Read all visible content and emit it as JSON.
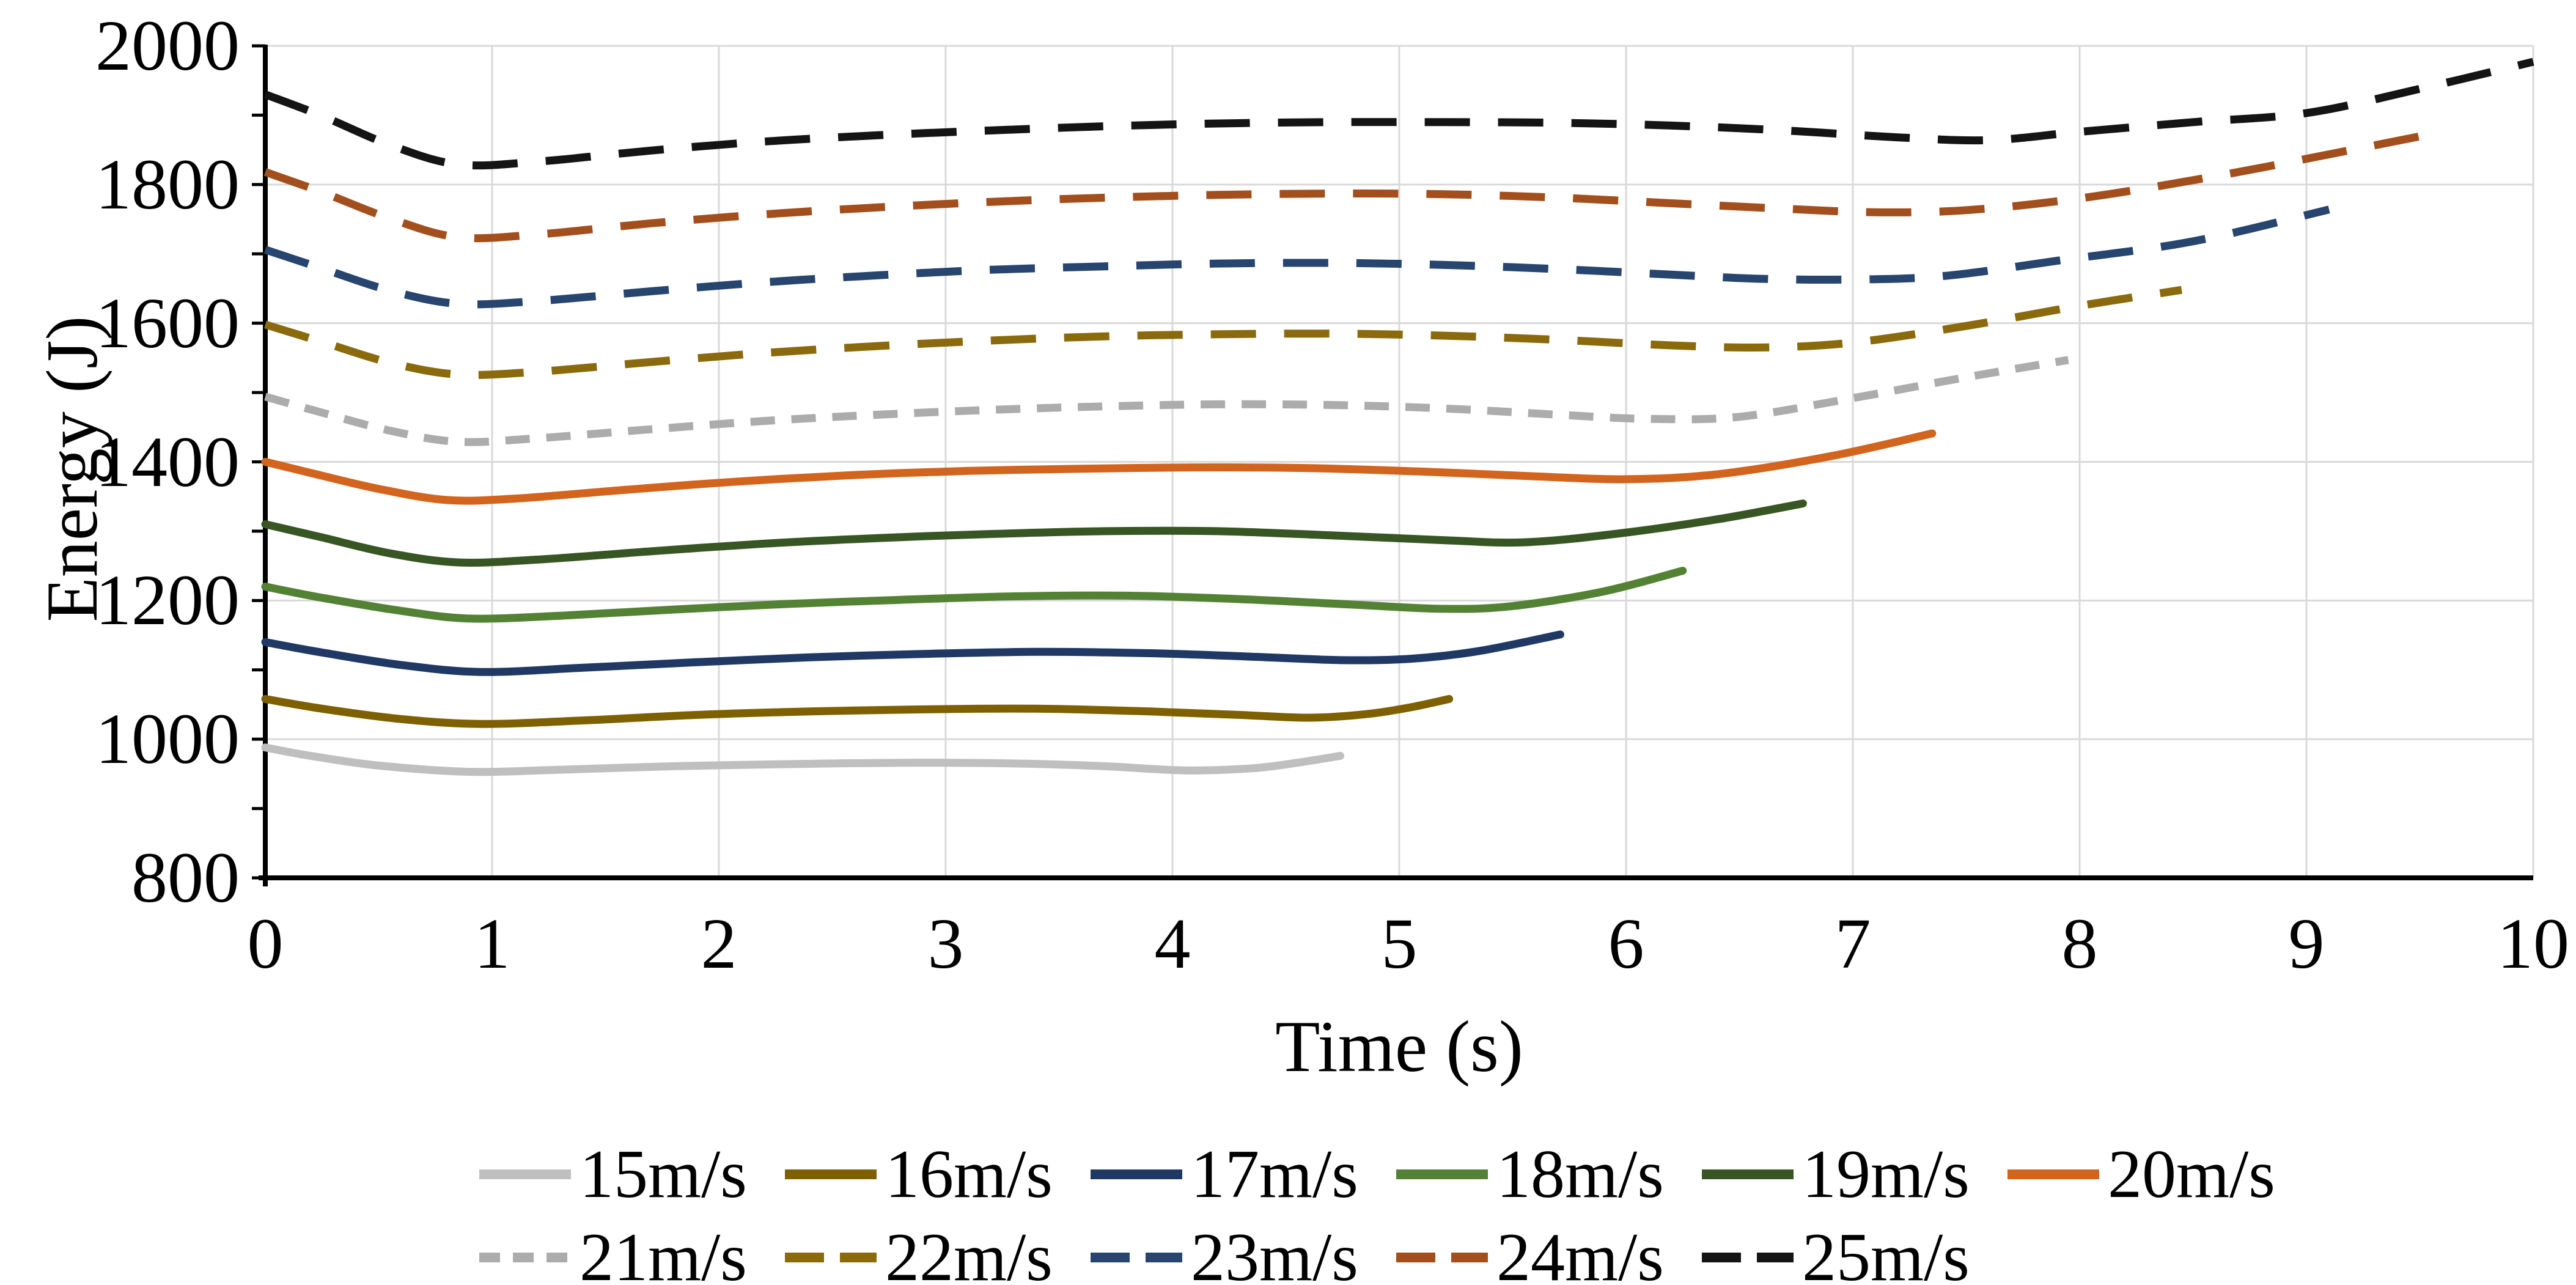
{
  "chart_data": {
    "type": "line",
    "title": "",
    "xlabel": "Time (s)",
    "ylabel": "Energy (J)",
    "xlim": [
      0,
      10
    ],
    "ylim": [
      800,
      2000
    ],
    "x_ticks": [
      0,
      1,
      2,
      3,
      4,
      5,
      6,
      7,
      8,
      9,
      10
    ],
    "y_ticks": [
      800,
      1000,
      1200,
      1400,
      1600,
      1800,
      2000
    ],
    "y_minor_tick_step": 100,
    "grid": true,
    "legend_position": "bottom",
    "background_color": "#ffffff",
    "gridline_color": "#d9d9d9",
    "axis_color": "#000000",
    "series": [
      {
        "name": "15m/s",
        "color": "#bfbfbf",
        "style": "solid",
        "points": [
          [
            0,
            988
          ],
          [
            0.2,
            976
          ],
          [
            0.5,
            962
          ],
          [
            0.9,
            953
          ],
          [
            1.3,
            956
          ],
          [
            1.8,
            961
          ],
          [
            2.3,
            964
          ],
          [
            2.8,
            966
          ],
          [
            3.3,
            965
          ],
          [
            3.7,
            961
          ],
          [
            4.05,
            955
          ],
          [
            4.35,
            958
          ],
          [
            4.55,
            966
          ],
          [
            4.74,
            976
          ]
        ]
      },
      {
        "name": "16m/s",
        "color": "#7f6000",
        "style": "solid",
        "points": [
          [
            0,
            1058
          ],
          [
            0.25,
            1044
          ],
          [
            0.6,
            1029
          ],
          [
            0.95,
            1022
          ],
          [
            1.4,
            1027
          ],
          [
            1.9,
            1035
          ],
          [
            2.4,
            1040
          ],
          [
            2.9,
            1043
          ],
          [
            3.4,
            1044
          ],
          [
            3.9,
            1040
          ],
          [
            4.3,
            1035
          ],
          [
            4.6,
            1031
          ],
          [
            4.85,
            1036
          ],
          [
            5.05,
            1046
          ],
          [
            5.22,
            1058
          ]
        ]
      },
      {
        "name": "17m/s",
        "color": "#1f3864",
        "style": "solid",
        "points": [
          [
            0,
            1140
          ],
          [
            0.25,
            1125
          ],
          [
            0.6,
            1107
          ],
          [
            0.95,
            1097
          ],
          [
            1.4,
            1103
          ],
          [
            1.9,
            1111
          ],
          [
            2.4,
            1118
          ],
          [
            2.9,
            1123
          ],
          [
            3.4,
            1126
          ],
          [
            3.9,
            1124
          ],
          [
            4.35,
            1119
          ],
          [
            4.75,
            1114
          ],
          [
            5.05,
            1116
          ],
          [
            5.35,
            1127
          ],
          [
            5.71,
            1151
          ]
        ]
      },
      {
        "name": "18m/s",
        "color": "#548235",
        "style": "solid",
        "points": [
          [
            0,
            1220
          ],
          [
            0.25,
            1204
          ],
          [
            0.6,
            1185
          ],
          [
            0.9,
            1174
          ],
          [
            1.3,
            1178
          ],
          [
            1.8,
            1187
          ],
          [
            2.3,
            1195
          ],
          [
            2.8,
            1201
          ],
          [
            3.3,
            1206
          ],
          [
            3.8,
            1207
          ],
          [
            4.3,
            1202
          ],
          [
            4.8,
            1194
          ],
          [
            5.2,
            1188
          ],
          [
            5.5,
            1192
          ],
          [
            5.9,
            1213
          ],
          [
            6.25,
            1243
          ]
        ]
      },
      {
        "name": "19m/s",
        "color": "#375623",
        "style": "solid",
        "points": [
          [
            0,
            1310
          ],
          [
            0.25,
            1291
          ],
          [
            0.55,
            1268
          ],
          [
            0.85,
            1255
          ],
          [
            1.2,
            1259
          ],
          [
            1.7,
            1271
          ],
          [
            2.2,
            1282
          ],
          [
            2.7,
            1290
          ],
          [
            3.2,
            1296
          ],
          [
            3.7,
            1300
          ],
          [
            4.2,
            1300
          ],
          [
            4.7,
            1294
          ],
          [
            5.2,
            1287
          ],
          [
            5.55,
            1284
          ],
          [
            5.95,
            1296
          ],
          [
            6.4,
            1317
          ],
          [
            6.78,
            1340
          ]
        ]
      },
      {
        "name": "20m/s",
        "color": "#d2641e",
        "style": "solid",
        "points": [
          [
            0,
            1400
          ],
          [
            0.2,
            1384
          ],
          [
            0.5,
            1361
          ],
          [
            0.8,
            1345
          ],
          [
            1.1,
            1347
          ],
          [
            1.6,
            1360
          ],
          [
            2.1,
            1372
          ],
          [
            2.6,
            1381
          ],
          [
            3.1,
            1387
          ],
          [
            3.6,
            1390
          ],
          [
            4.1,
            1392
          ],
          [
            4.6,
            1391
          ],
          [
            5.1,
            1386
          ],
          [
            5.6,
            1379
          ],
          [
            6.0,
            1375
          ],
          [
            6.4,
            1382
          ],
          [
            6.9,
            1408
          ],
          [
            7.35,
            1441
          ]
        ]
      },
      {
        "name": "21m/s",
        "color": "#acacac",
        "style": "short-dash",
        "points": [
          [
            0,
            1494
          ],
          [
            0.25,
            1471
          ],
          [
            0.55,
            1445
          ],
          [
            0.85,
            1429
          ],
          [
            1.2,
            1434
          ],
          [
            1.7,
            1447
          ],
          [
            2.2,
            1459
          ],
          [
            2.7,
            1468
          ],
          [
            3.2,
            1475
          ],
          [
            3.7,
            1480
          ],
          [
            4.2,
            1483
          ],
          [
            4.7,
            1482
          ],
          [
            5.2,
            1477
          ],
          [
            5.7,
            1468
          ],
          [
            6.1,
            1462
          ],
          [
            6.5,
            1465
          ],
          [
            7.0,
            1492
          ],
          [
            7.5,
            1522
          ],
          [
            7.95,
            1547
          ]
        ]
      },
      {
        "name": "22m/s",
        "color": "#8a6a0d",
        "style": "dash",
        "points": [
          [
            0,
            1598
          ],
          [
            0.25,
            1573
          ],
          [
            0.55,
            1543
          ],
          [
            0.85,
            1526
          ],
          [
            1.2,
            1530
          ],
          [
            1.7,
            1544
          ],
          [
            2.2,
            1557
          ],
          [
            2.7,
            1567
          ],
          [
            3.2,
            1575
          ],
          [
            3.7,
            1581
          ],
          [
            4.2,
            1584
          ],
          [
            4.7,
            1585
          ],
          [
            5.2,
            1582
          ],
          [
            5.7,
            1576
          ],
          [
            6.2,
            1568
          ],
          [
            6.6,
            1565
          ],
          [
            7.0,
            1572
          ],
          [
            7.5,
            1596
          ],
          [
            8.0,
            1625
          ],
          [
            8.45,
            1648
          ]
        ]
      },
      {
        "name": "23m/s",
        "color": "#27456e",
        "style": "dash",
        "points": [
          [
            0,
            1706
          ],
          [
            0.25,
            1679
          ],
          [
            0.55,
            1647
          ],
          [
            0.85,
            1628
          ],
          [
            1.2,
            1632
          ],
          [
            1.7,
            1646
          ],
          [
            2.2,
            1659
          ],
          [
            2.7,
            1669
          ],
          [
            3.2,
            1677
          ],
          [
            3.7,
            1682
          ],
          [
            4.2,
            1686
          ],
          [
            4.7,
            1687
          ],
          [
            5.2,
            1684
          ],
          [
            5.7,
            1678
          ],
          [
            6.2,
            1670
          ],
          [
            6.6,
            1664
          ],
          [
            7.0,
            1663
          ],
          [
            7.4,
            1668
          ],
          [
            7.9,
            1690
          ],
          [
            8.5,
            1718
          ],
          [
            9.1,
            1764
          ]
        ]
      },
      {
        "name": "24m/s",
        "color": "#a34f1d",
        "style": "dash",
        "points": [
          [
            0,
            1818
          ],
          [
            0.25,
            1789
          ],
          [
            0.55,
            1751
          ],
          [
            0.85,
            1724
          ],
          [
            1.2,
            1728
          ],
          [
            1.7,
            1744
          ],
          [
            2.2,
            1757
          ],
          [
            2.7,
            1767
          ],
          [
            3.2,
            1775
          ],
          [
            3.7,
            1781
          ],
          [
            4.2,
            1785
          ],
          [
            4.7,
            1787
          ],
          [
            5.2,
            1786
          ],
          [
            5.7,
            1781
          ],
          [
            6.2,
            1773
          ],
          [
            6.7,
            1765
          ],
          [
            7.1,
            1760
          ],
          [
            7.5,
            1763
          ],
          [
            8.0,
            1780
          ],
          [
            8.6,
            1812
          ],
          [
            9.2,
            1850
          ],
          [
            9.6,
            1876
          ]
        ]
      },
      {
        "name": "25m/s",
        "color": "#141414",
        "style": "dash",
        "points": [
          [
            0,
            1930
          ],
          [
            0.25,
            1899
          ],
          [
            0.55,
            1857
          ],
          [
            0.85,
            1829
          ],
          [
            1.2,
            1833
          ],
          [
            1.7,
            1849
          ],
          [
            2.2,
            1862
          ],
          [
            2.7,
            1871
          ],
          [
            3.2,
            1878
          ],
          [
            3.7,
            1884
          ],
          [
            4.2,
            1888
          ],
          [
            4.7,
            1890
          ],
          [
            5.2,
            1890
          ],
          [
            5.7,
            1889
          ],
          [
            6.2,
            1885
          ],
          [
            6.7,
            1878
          ],
          [
            7.2,
            1868
          ],
          [
            7.6,
            1864
          ],
          [
            8.0,
            1876
          ],
          [
            8.5,
            1890
          ],
          [
            9.0,
            1903
          ],
          [
            9.5,
            1938
          ],
          [
            10.0,
            1977
          ]
        ]
      }
    ],
    "legend_rows": [
      6,
      5
    ]
  }
}
